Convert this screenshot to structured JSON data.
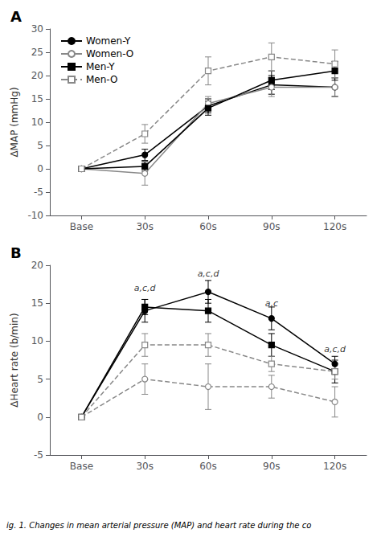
{
  "caption": "ig. 1. Changes in mean arterial pressure (MAP) and heart rate during the co",
  "chart_data": [
    {
      "type": "line",
      "title": "A",
      "ylabel": "ΔMAP (mmHg)",
      "categories": [
        "Base",
        "30s",
        "60s",
        "90s",
        "120s"
      ],
      "ylim": [
        -10,
        30
      ],
      "yticks": [
        -10,
        -5,
        0,
        5,
        10,
        15,
        20,
        25,
        30
      ],
      "grid": false,
      "legend": "upper left",
      "series": [
        {
          "name": "Women-Y",
          "color": "#000000",
          "marker": "circle",
          "line_style": "solid",
          "values": [
            0,
            3.0,
            13.5,
            18.0,
            17.5
          ],
          "errors": [
            0,
            1.2,
            1.5,
            2.0,
            2.0
          ]
        },
        {
          "name": "Women-O",
          "color": "#888888",
          "marker": "circle-open",
          "line_style": "solid",
          "values": [
            0,
            -1.0,
            14.0,
            17.5,
            17.5
          ],
          "errors": [
            0,
            2.5,
            1.5,
            2.0,
            2.0
          ]
        },
        {
          "name": "Men-Y",
          "color": "#000000",
          "marker": "square",
          "line_style": "solid",
          "values": [
            0,
            0.5,
            13.0,
            19.0,
            21.0
          ],
          "errors": [
            0,
            1.0,
            1.5,
            2.0,
            2.0
          ]
        },
        {
          "name": "Men-O",
          "color": "#888888",
          "marker": "square-open",
          "line_style": "dashed",
          "values": [
            0,
            7.5,
            21.0,
            24.0,
            22.5
          ],
          "errors": [
            0,
            2.0,
            3.0,
            3.0,
            3.0
          ]
        }
      ]
    },
    {
      "type": "line",
      "title": "B",
      "ylabel": "ΔHeart rate (b/min)",
      "categories": [
        "Base",
        "30s",
        "60s",
        "90s",
        "120s"
      ],
      "ylim": [
        -5,
        20
      ],
      "yticks": [
        -5,
        0,
        5,
        10,
        15,
        20
      ],
      "grid": false,
      "annotations": [
        {
          "x": "30s",
          "y": 16.3,
          "text": "a,c,d"
        },
        {
          "x": "60s",
          "y": 18.2,
          "text": "a,c,d"
        },
        {
          "x": "90s",
          "y": 14.3,
          "text": "a,c"
        },
        {
          "x": "120s",
          "y": 8.2,
          "text": "a,c,d"
        }
      ],
      "series": [
        {
          "name": "Women-Y",
          "color": "#000000",
          "marker": "circle",
          "line_style": "solid",
          "values": [
            0,
            14.0,
            16.5,
            13.0,
            7.0
          ],
          "errors": [
            0,
            1.5,
            1.5,
            1.5,
            1.0
          ]
        },
        {
          "name": "Women-O",
          "color": "#888888",
          "marker": "circle-open",
          "line_style": "dashed",
          "values": [
            0,
            5.0,
            4.0,
            4.0,
            2.0
          ],
          "errors": [
            0,
            2.0,
            3.0,
            1.5,
            2.0
          ]
        },
        {
          "name": "Men-Y",
          "color": "#000000",
          "marker": "square",
          "line_style": "solid",
          "values": [
            0,
            14.5,
            14.0,
            9.5,
            6.0
          ],
          "errors": [
            0,
            1.0,
            1.5,
            1.5,
            1.5
          ]
        },
        {
          "name": "Men-O",
          "color": "#888888",
          "marker": "square-open",
          "line_style": "dashed",
          "values": [
            0,
            9.5,
            9.5,
            7.0,
            6.0
          ],
          "errors": [
            0,
            1.5,
            1.5,
            1.0,
            1.0
          ]
        }
      ]
    }
  ]
}
